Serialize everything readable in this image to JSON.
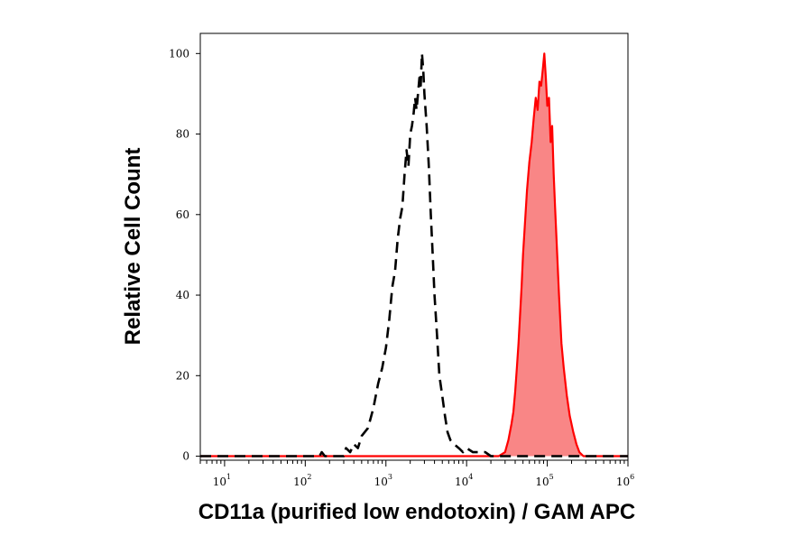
{
  "chart_data": {
    "type": "area",
    "xlabel": "CD11a (purified low endotoxin) / GAM APC",
    "ylabel": "Relative Cell Count",
    "xscale": "log",
    "xlim": [
      5,
      1000000
    ],
    "ylim": [
      -1,
      105
    ],
    "y_ticks": [
      0,
      20,
      40,
      60,
      80,
      100
    ],
    "x_ticks": [
      {
        "base": "10",
        "exp": "1",
        "value": 10
      },
      {
        "base": "10",
        "exp": "2",
        "value": 100
      },
      {
        "base": "10",
        "exp": "3",
        "value": 1000
      },
      {
        "base": "10",
        "exp": "4",
        "value": 10000
      },
      {
        "base": "10",
        "exp": "5",
        "value": 100000
      },
      {
        "base": "10",
        "exp": "6",
        "value": 1000000
      }
    ],
    "grid": false,
    "legend": "none",
    "series": [
      {
        "style": "dashed",
        "color": "#000000",
        "fill": "none",
        "x": [
          5,
          150,
          160,
          175,
          300,
          320,
          360,
          400,
          450,
          500,
          600,
          700,
          800,
          900,
          1000,
          1100,
          1200,
          1300,
          1400,
          1500,
          1600,
          1700,
          1800,
          1900,
          2000,
          2100,
          2200,
          2300,
          2400,
          2500,
          2600,
          2700,
          2800,
          2900,
          3000,
          3200,
          3400,
          3600,
          3800,
          4000,
          4300,
          4600,
          5000,
          5400,
          5800,
          6300,
          7000,
          8000,
          9000,
          10000,
          12000,
          14000,
          17000,
          20000,
          25000,
          1000000
        ],
        "y": [
          0,
          0,
          1,
          0,
          0,
          2,
          1,
          3,
          2,
          5,
          7,
          12,
          18,
          22,
          27,
          34,
          42,
          46,
          54,
          59,
          62,
          70,
          76,
          72,
          80,
          82,
          85,
          89,
          86,
          90,
          94,
          92,
          100,
          96,
          90,
          82,
          72,
          60,
          50,
          40,
          30,
          20,
          15,
          10,
          6,
          4,
          3,
          2,
          1,
          2,
          1,
          1,
          1,
          0,
          0,
          0
        ]
      },
      {
        "style": "solid",
        "color": "#ff0000",
        "fill": "#f98686",
        "x": [
          5,
          25000,
          30000,
          33000,
          36000,
          38000,
          40000,
          42000,
          44000,
          46000,
          48000,
          50000,
          53000,
          56000,
          60000,
          64000,
          68000,
          72000,
          76000,
          80000,
          84000,
          88000,
          92000,
          96000,
          100000,
          105000,
          110000,
          115000,
          120000,
          125000,
          130000,
          140000,
          150000,
          160000,
          175000,
          190000,
          210000,
          230000,
          250000,
          280000,
          1000000
        ],
        "y": [
          0,
          0,
          1,
          4,
          8,
          11,
          16,
          22,
          28,
          35,
          42,
          50,
          58,
          66,
          73,
          78,
          84,
          89,
          86,
          93,
          92,
          96,
          100,
          94,
          87,
          89,
          78,
          82,
          70,
          62,
          54,
          40,
          28,
          22,
          15,
          10,
          6,
          3,
          1,
          0,
          0
        ]
      }
    ]
  }
}
